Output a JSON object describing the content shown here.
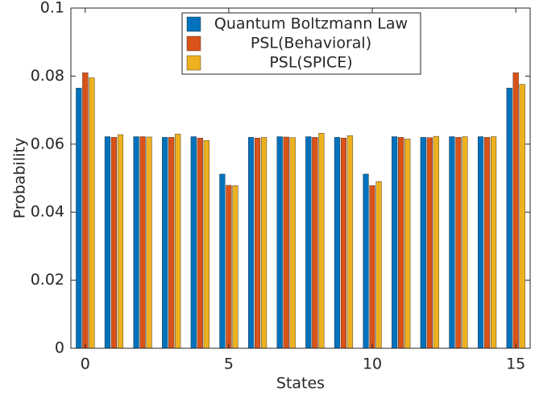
{
  "chart_data": {
    "type": "bar",
    "x_label": "States",
    "y_label": "Probability",
    "x": [
      0,
      1,
      2,
      3,
      4,
      5,
      6,
      7,
      8,
      9,
      10,
      11,
      12,
      13,
      14,
      15
    ],
    "series": [
      {
        "name": "Quantum Boltzmann Law",
        "color": "#0072bd",
        "values": [
          0.0765,
          0.0622,
          0.0622,
          0.062,
          0.0622,
          0.0512,
          0.062,
          0.0622,
          0.0622,
          0.062,
          0.0512,
          0.0622,
          0.062,
          0.0622,
          0.0622,
          0.0765
        ]
      },
      {
        "name": "PSL(Behavioral)",
        "color": "#d95319",
        "values": [
          0.081,
          0.062,
          0.0622,
          0.062,
          0.0618,
          0.0479,
          0.0618,
          0.0621,
          0.062,
          0.0618,
          0.0478,
          0.062,
          0.0619,
          0.062,
          0.062,
          0.081
        ]
      },
      {
        "name": "PSL(SPICE)",
        "color": "#edb120",
        "values": [
          0.0795,
          0.0628,
          0.0621,
          0.063,
          0.0611,
          0.0478,
          0.062,
          0.0619,
          0.0632,
          0.0625,
          0.049,
          0.0615,
          0.0623,
          0.0622,
          0.0622,
          0.0776
        ]
      }
    ],
    "xlim": [
      -0.5,
      15.5
    ],
    "xticks": [
      0,
      5,
      10,
      15
    ],
    "ylim": [
      0,
      0.1
    ],
    "yticks": [
      0,
      0.02,
      0.04,
      0.06,
      0.08,
      0.1
    ],
    "grid": false,
    "legend": "top"
  }
}
